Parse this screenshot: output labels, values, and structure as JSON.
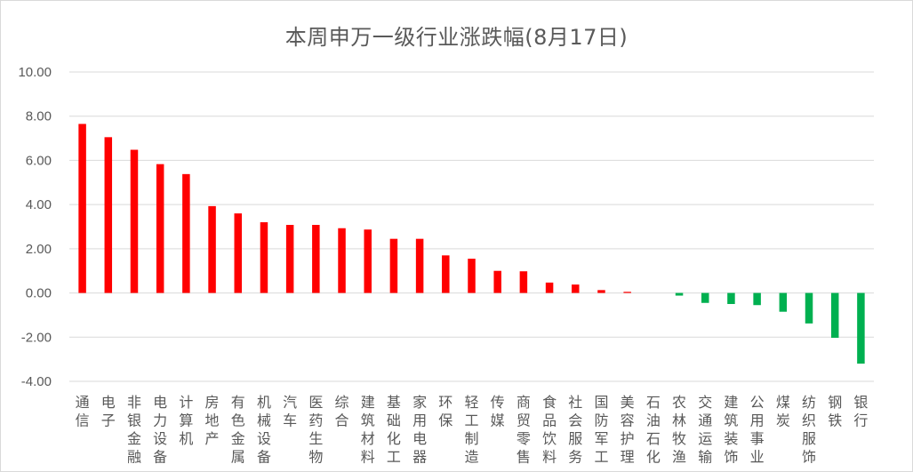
{
  "chart_data": {
    "type": "bar",
    "title": "本周申万一级行业涨跌幅(8月17日)",
    "xlabel": "",
    "ylabel": "",
    "ylim": [
      -4,
      10
    ],
    "yticks": [
      "10.00",
      "8.00",
      "6.00",
      "4.00",
      "2.00",
      "0.00",
      "-2.00",
      "-4.00"
    ],
    "ytick_values": [
      10,
      8,
      6,
      4,
      2,
      0,
      -2,
      -4
    ],
    "grid": true,
    "legend": "none",
    "positive_color": "#ff0000",
    "negative_color": "#00b050",
    "categories": [
      "通信",
      "电子",
      "非银金融",
      "电力设备",
      "计算机",
      "房地产",
      "有色金属",
      "机械设备",
      "汽车",
      "医药生物",
      "综合",
      "建筑材料",
      "基础化工",
      "家用电器",
      "环保",
      "轻工制造",
      "传媒",
      "商贸零售",
      "食品饮料",
      "社会服务",
      "国防军工",
      "美容护理",
      "石油石化",
      "农林牧渔",
      "交通运输",
      "建筑装饰",
      "公用事业",
      "煤炭",
      "纺织服饰",
      "钢铁",
      "银行"
    ],
    "values": [
      7.65,
      7.05,
      6.48,
      5.83,
      5.38,
      3.93,
      3.6,
      3.2,
      3.08,
      3.08,
      2.93,
      2.87,
      2.45,
      2.45,
      1.7,
      1.55,
      1.0,
      0.98,
      0.47,
      0.38,
      0.13,
      0.05,
      0.0,
      -0.12,
      -0.45,
      -0.5,
      -0.55,
      -0.85,
      -1.38,
      -2.03,
      -3.2
    ]
  }
}
